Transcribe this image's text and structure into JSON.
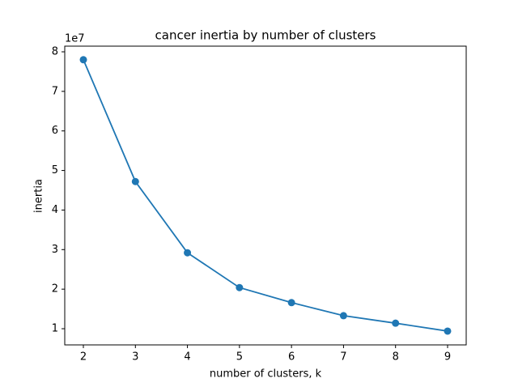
{
  "chart_data": {
    "type": "line",
    "title": "cancer inertia by number of clusters",
    "x_label": "number of clusters, k",
    "y_label": "inertia",
    "y_offset_label": "1e7",
    "x": [
      2,
      3,
      4,
      5,
      6,
      7,
      8,
      9
    ],
    "series": [
      {
        "name": "inertia",
        "color": "#1f77b4",
        "values": [
          7.8,
          4.72,
          2.92,
          2.04,
          1.66,
          1.33,
          1.14,
          0.94
        ]
      }
    ],
    "xlim": [
      1.642,
      9.358
    ],
    "ylim": [
      0.591,
      8.143
    ],
    "xticks": [
      2,
      3,
      4,
      5,
      6,
      7,
      8,
      9
    ],
    "yticks": [
      1,
      2,
      3,
      4,
      5,
      6,
      7,
      8
    ],
    "markers": true,
    "grid": false
  }
}
